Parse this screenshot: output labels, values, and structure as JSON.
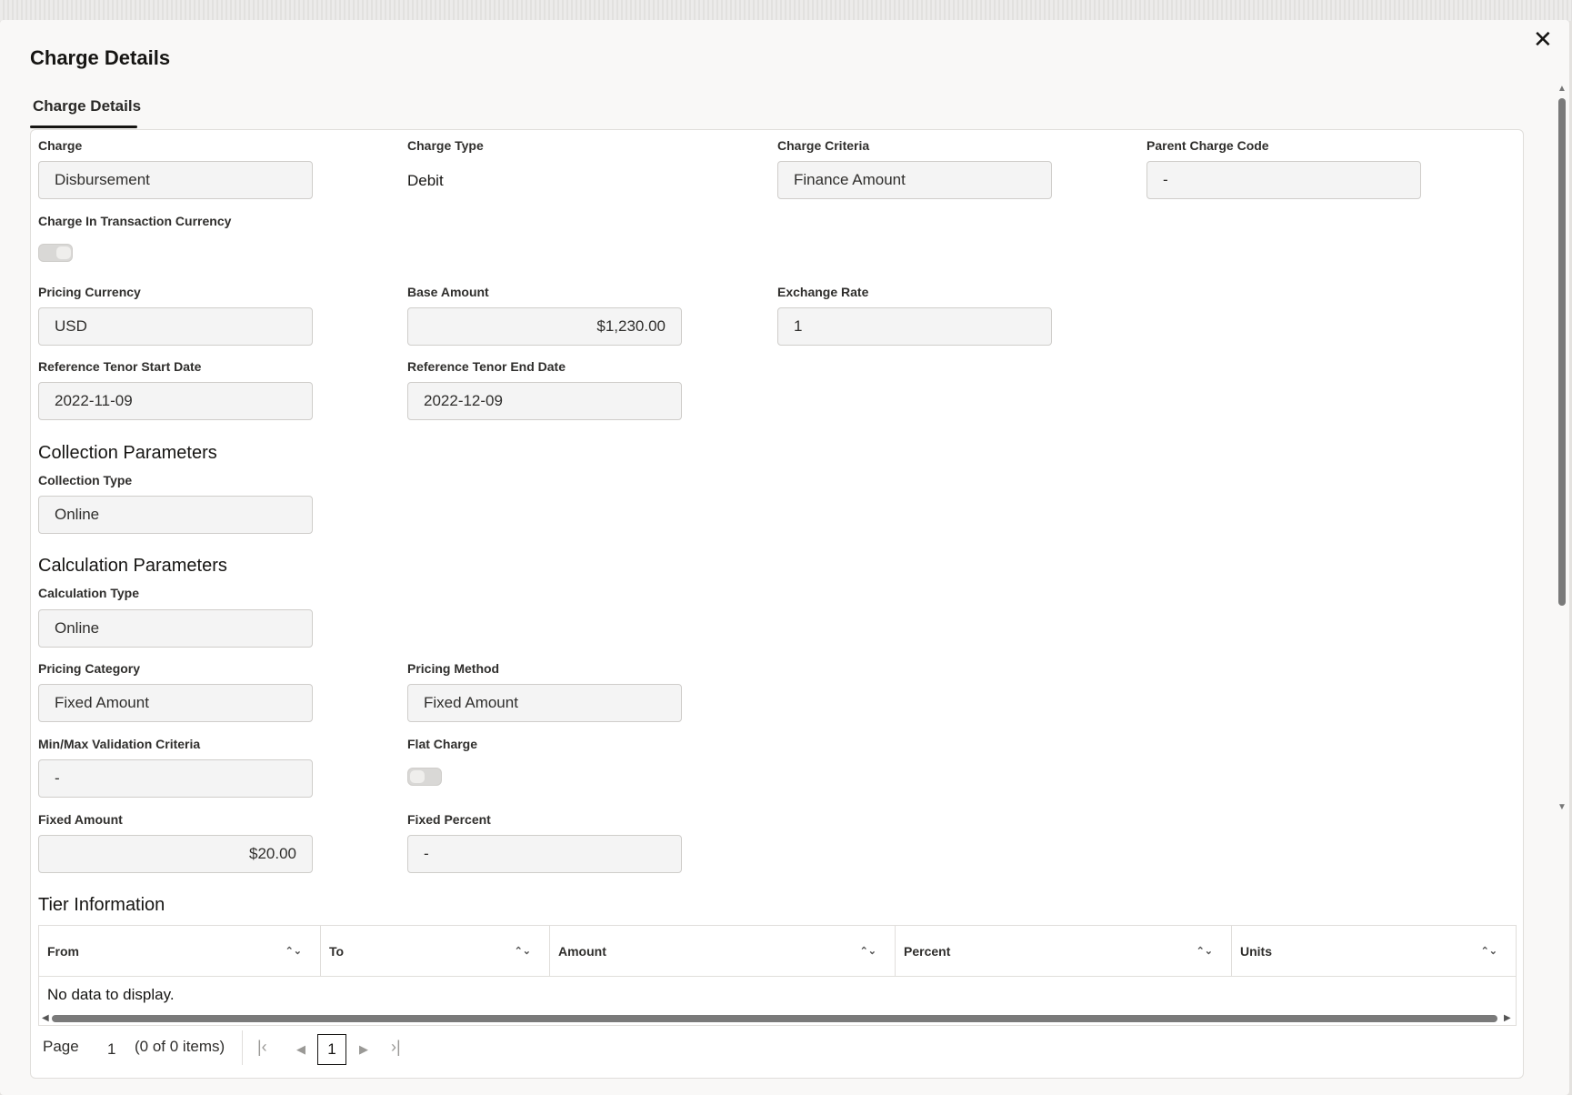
{
  "dialog": {
    "title": "Charge Details",
    "close_icon": "close-icon"
  },
  "tabs": [
    {
      "label": "Charge Details",
      "active": true
    }
  ],
  "fields": {
    "charge": {
      "label": "Charge",
      "value": "Disbursement"
    },
    "charge_type": {
      "label": "Charge Type",
      "value": "Debit"
    },
    "charge_criteria": {
      "label": "Charge Criteria",
      "value": "Finance Amount"
    },
    "parent_charge_code": {
      "label": "Parent Charge Code",
      "value": "-"
    },
    "charge_in_txn_currency": {
      "label": "Charge In Transaction Currency",
      "on": false
    },
    "pricing_currency": {
      "label": "Pricing Currency",
      "value": "USD"
    },
    "base_amount": {
      "label": "Base Amount",
      "value": "$1,230.00"
    },
    "exchange_rate": {
      "label": "Exchange Rate",
      "value": "1"
    },
    "ref_start": {
      "label": "Reference Tenor Start Date",
      "value": "2022-11-09"
    },
    "ref_end": {
      "label": "Reference Tenor End Date",
      "value": "2022-12-09"
    }
  },
  "collection": {
    "heading": "Collection Parameters",
    "type_label": "Collection Type",
    "type_value": "Online"
  },
  "calculation": {
    "heading": "Calculation Parameters",
    "type_label": "Calculation Type",
    "type_value": "Online",
    "pricing_category_label": "Pricing Category",
    "pricing_category_value": "Fixed Amount",
    "pricing_method_label": "Pricing Method",
    "pricing_method_value": "Fixed Amount",
    "minmax_label": "Min/Max Validation Criteria",
    "minmax_value": "-",
    "flat_charge_label": "Flat Charge",
    "flat_charge_on": false,
    "fixed_amount_label": "Fixed Amount",
    "fixed_amount_value": "$20.00",
    "fixed_percent_label": "Fixed Percent",
    "fixed_percent_value": "-"
  },
  "tier": {
    "heading": "Tier Information",
    "columns": [
      "From",
      "To",
      "Amount",
      "Percent",
      "Units"
    ],
    "empty": "No data to display.",
    "pager": {
      "page_label": "Page",
      "page": "1",
      "items": "(0 of 0 items)",
      "current": "1"
    }
  }
}
